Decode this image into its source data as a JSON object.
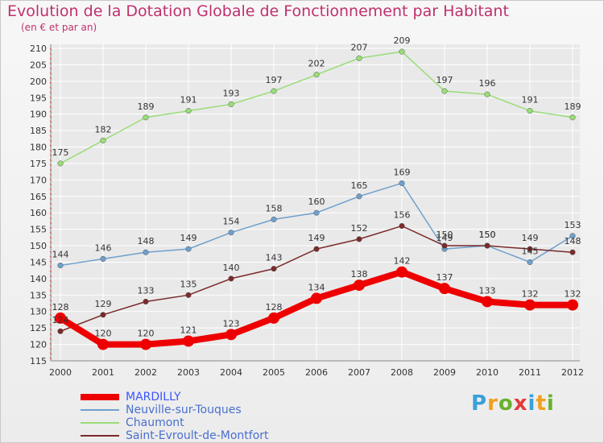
{
  "title": "Evolution de la Dotation Globale de Fonctionnement par Habitant",
  "subtitle": "(en € et par an)",
  "colors": {
    "title": "#c0306f",
    "axis": "#333333",
    "grid": "#ffffff"
  },
  "logo": {
    "text": "Proxiti"
  },
  "chart_data": {
    "type": "line",
    "title": "Evolution de la Dotation Globale de Fonctionnement par Habitant",
    "subtitle": "(en € et par an)",
    "xlabel": "",
    "ylabel": "",
    "x": [
      "2000",
      "2001",
      "2002",
      "2003",
      "2004",
      "2005",
      "2006",
      "2007",
      "2008",
      "2009",
      "2010",
      "2011",
      "2012"
    ],
    "ylim": [
      115,
      210
    ],
    "yticks": [
      115,
      120,
      125,
      130,
      135,
      140,
      145,
      150,
      155,
      160,
      165,
      170,
      175,
      180,
      185,
      190,
      195,
      200,
      205,
      210
    ],
    "grid": true,
    "legend_position": "bottom-left",
    "series": [
      {
        "name": "MARDILLY",
        "color": "#ee0000",
        "values": [
          128,
          120,
          120,
          121,
          123,
          128,
          134,
          138,
          142,
          137,
          133,
          132,
          132
        ],
        "labels": [
          "128",
          "120",
          "120",
          "121",
          "123",
          "128",
          "134",
          "138",
          "142",
          "137",
          "133",
          "132",
          "132"
        ]
      },
      {
        "name": "Neuville-sur-Touques",
        "color": "#6fa0cc",
        "values": [
          144,
          146,
          148,
          149,
          154,
          158,
          160,
          165,
          169,
          149,
          150,
          145,
          153
        ],
        "labels": [
          "144",
          "146",
          "148",
          "149",
          "154",
          "158",
          "160",
          "165",
          "169",
          "149",
          "150",
          "145",
          "153"
        ]
      },
      {
        "name": "Chaumont",
        "color": "#99dd77",
        "values": [
          175,
          182,
          189,
          191,
          193,
          197,
          202,
          207,
          209,
          197,
          196,
          191,
          189
        ],
        "labels": [
          "175",
          "182",
          "189",
          "191",
          "193",
          "197",
          "202",
          "207",
          "209",
          "197",
          "196",
          "191",
          "189"
        ]
      },
      {
        "name": "Saint-Evroult-de-Montfort",
        "color": "#7a2a2a",
        "values": [
          124,
          129,
          133,
          135,
          140,
          143,
          149,
          152,
          156,
          150,
          150,
          149,
          148
        ],
        "labels": [
          "124",
          "129",
          "133",
          "135",
          "140",
          "143",
          "149",
          "152",
          "156",
          "150",
          "150",
          "149",
          "148"
        ]
      }
    ]
  }
}
